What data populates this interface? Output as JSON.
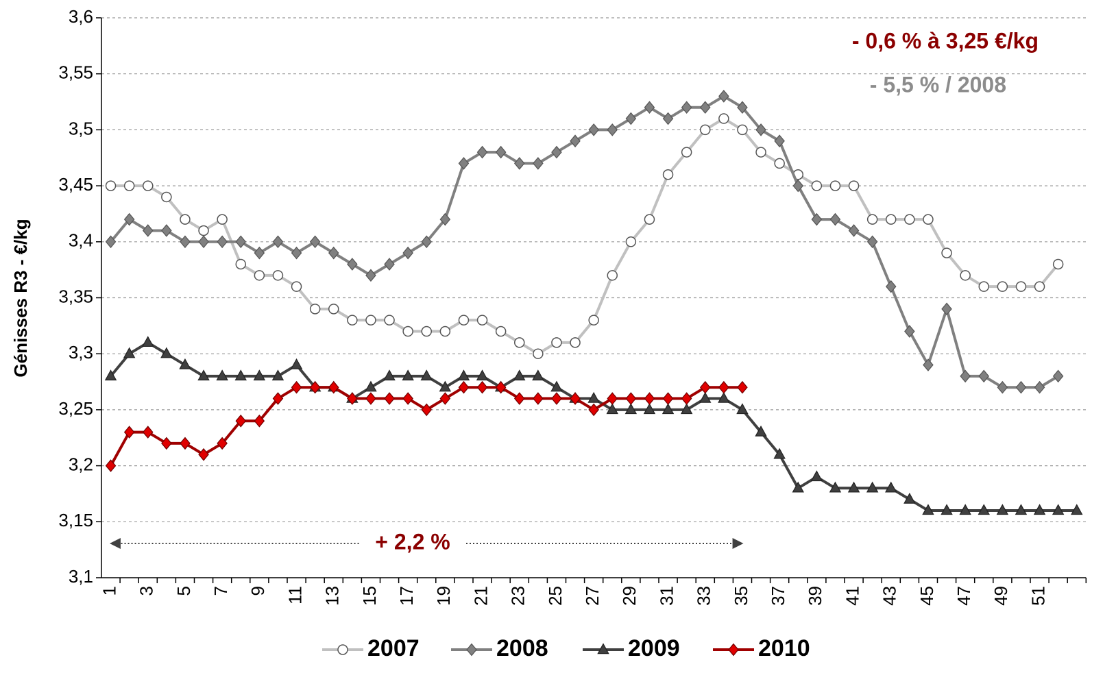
{
  "chart_data": {
    "type": "line",
    "y_label": "Génisses R3 - €/kg",
    "categories": [
      1,
      null,
      3,
      null,
      5,
      null,
      7,
      null,
      9,
      null,
      11,
      null,
      13,
      null,
      15,
      null,
      17,
      null,
      19,
      null,
      21,
      null,
      23,
      null,
      25,
      null,
      27,
      null,
      29,
      null,
      31,
      null,
      33,
      null,
      35,
      null,
      37,
      null,
      39,
      null,
      41,
      null,
      43,
      null,
      45,
      null,
      47,
      null,
      49,
      null,
      51,
      null,
      null
    ],
    "ylim": [
      3.1,
      3.6
    ],
    "yticks": [
      {
        "value": 3.1,
        "label": "3,1"
      },
      {
        "value": 3.15,
        "label": "3,15"
      },
      {
        "value": 3.2,
        "label": "3,2"
      },
      {
        "value": 3.25,
        "label": "3,25"
      },
      {
        "value": 3.3,
        "label": "3,3"
      },
      {
        "value": 3.35,
        "label": "3,35"
      },
      {
        "value": 3.4,
        "label": "3,4"
      },
      {
        "value": 3.45,
        "label": "3,45"
      },
      {
        "value": 3.5,
        "label": "3,5"
      },
      {
        "value": 3.55,
        "label": "3,55"
      },
      {
        "value": 3.6,
        "label": "3,6"
      }
    ],
    "grid": true,
    "legend": "bottom",
    "annotations": [
      {
        "text": "- 0,6 % à 3,25 €/kg",
        "color": "#8b0000"
      },
      {
        "text": "- 5,5 % / 2008",
        "color": "#8c8c8c"
      },
      {
        "text": "+ 2,2 %",
        "color": "#8b0000"
      }
    ],
    "series": [
      {
        "name": "2007",
        "color": "#c0c0c0",
        "marker": "circle",
        "values": [
          3.45,
          3.45,
          3.45,
          3.44,
          3.42,
          3.41,
          3.42,
          3.38,
          3.37,
          3.37,
          3.36,
          3.34,
          3.34,
          3.33,
          3.33,
          3.33,
          3.32,
          3.32,
          3.32,
          3.33,
          3.33,
          3.32,
          3.31,
          3.3,
          3.31,
          3.31,
          3.33,
          3.37,
          3.4,
          3.42,
          3.46,
          3.48,
          3.5,
          3.51,
          3.5,
          3.48,
          3.47,
          3.46,
          3.45,
          3.45,
          3.45,
          3.42,
          3.42,
          3.42,
          3.42,
          3.39,
          3.37,
          3.36,
          3.36,
          3.36,
          3.36,
          3.38,
          null
        ]
      },
      {
        "name": "2008",
        "color": "#808080",
        "marker": "diamond",
        "values": [
          3.4,
          3.42,
          3.41,
          3.41,
          3.4,
          3.4,
          3.4,
          3.4,
          3.39,
          3.4,
          3.39,
          3.4,
          3.39,
          3.38,
          3.37,
          3.38,
          3.39,
          3.4,
          3.42,
          3.47,
          3.48,
          3.48,
          3.47,
          3.47,
          3.48,
          3.49,
          3.5,
          3.5,
          3.51,
          3.52,
          3.51,
          3.52,
          3.52,
          3.53,
          3.52,
          3.5,
          3.49,
          3.45,
          3.42,
          3.42,
          3.41,
          3.4,
          3.36,
          3.32,
          3.29,
          3.34,
          3.28,
          3.28,
          3.27,
          3.27,
          3.27,
          3.28,
          null
        ]
      },
      {
        "name": "2009",
        "color": "#404040",
        "marker": "triangle",
        "values": [
          3.28,
          3.3,
          3.31,
          3.3,
          3.29,
          3.28,
          3.28,
          3.28,
          3.28,
          3.28,
          3.29,
          3.27,
          3.27,
          3.26,
          3.27,
          3.28,
          3.28,
          3.28,
          3.27,
          3.28,
          3.28,
          3.27,
          3.28,
          3.28,
          3.27,
          3.26,
          3.26,
          3.25,
          3.25,
          3.25,
          3.25,
          3.25,
          3.26,
          3.26,
          3.25,
          3.23,
          3.21,
          3.18,
          3.19,
          3.18,
          3.18,
          3.18,
          3.18,
          3.17,
          3.16,
          3.16,
          3.16,
          3.16,
          3.16,
          3.16,
          3.16,
          3.16,
          3.16
        ]
      },
      {
        "name": "2010",
        "color": "#a00000",
        "marker": "diamond",
        "values": [
          3.2,
          3.23,
          3.23,
          3.22,
          3.22,
          3.21,
          3.22,
          3.24,
          3.24,
          3.26,
          3.27,
          3.27,
          3.27,
          3.26,
          3.26,
          3.26,
          3.26,
          3.25,
          3.26,
          3.27,
          3.27,
          3.27,
          3.26,
          3.26,
          3.26,
          3.26,
          3.25,
          3.26,
          3.26,
          3.26,
          3.26,
          3.26,
          3.27,
          3.27,
          3.27,
          null,
          null,
          null,
          null,
          null,
          null,
          null,
          null,
          null,
          null,
          null,
          null,
          null,
          null,
          null,
          null,
          null,
          null
        ]
      }
    ]
  }
}
